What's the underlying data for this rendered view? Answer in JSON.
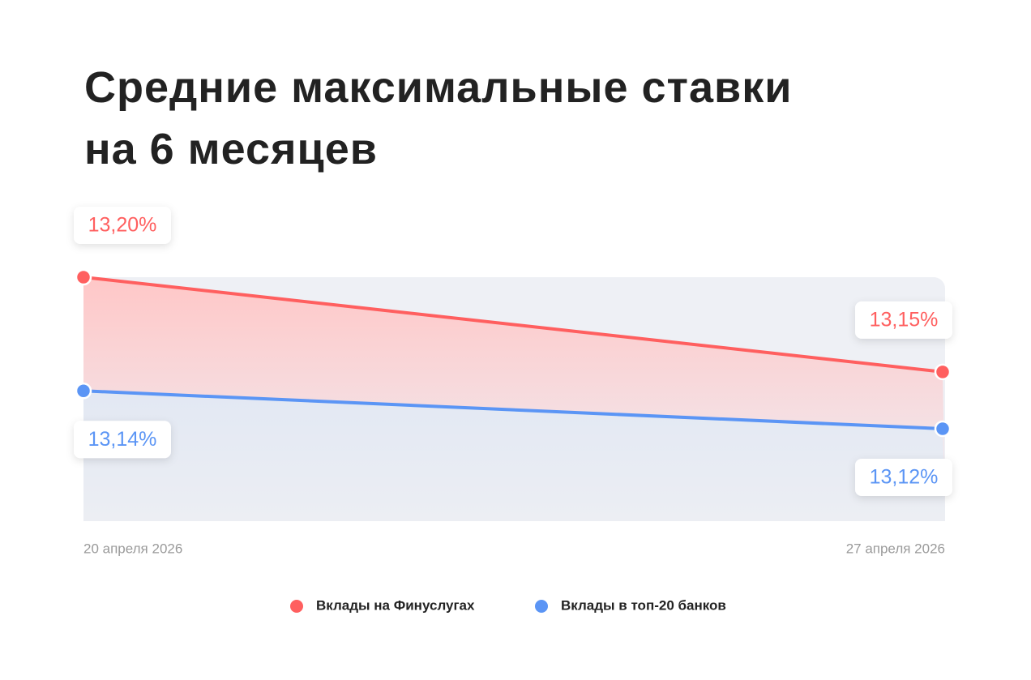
{
  "chart_data": {
    "type": "line",
    "title": "Средние максимальные ставки\nна 6 месяцев",
    "categories": [
      "20 апреля 2026",
      "27 апреля 2026"
    ],
    "series": [
      {
        "name": "Вклады на Финуслугах",
        "color": "#ff5f5f",
        "values": [
          13.2,
          13.15
        ],
        "value_labels": [
          "13,20%",
          "13,15%"
        ]
      },
      {
        "name": "Вклады в топ-20 банков",
        "color": "#5b95f5",
        "values": [
          13.14,
          13.12
        ],
        "value_labels": [
          "13,14%",
          "13,12%"
        ]
      }
    ]
  }
}
